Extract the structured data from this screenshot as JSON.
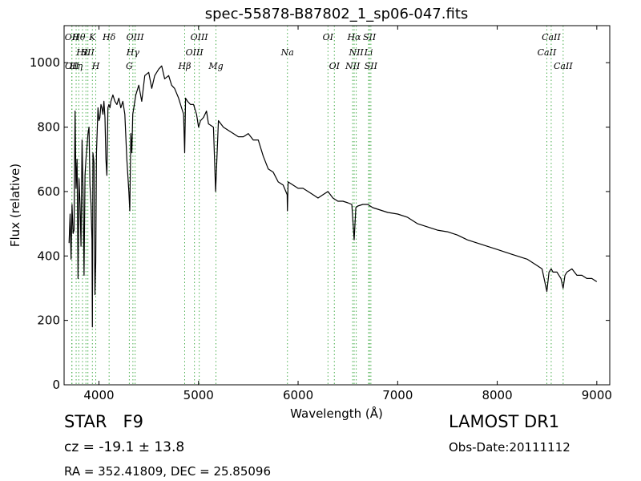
{
  "chart_data": {
    "type": "line",
    "title": "spec-55878-B87802_1_sp06-047.fits",
    "xlabel": "Wavelength (Å)",
    "ylabel": "Flux (relative)",
    "xlim": [
      3650,
      9130
    ],
    "ylim": [
      0,
      1115
    ],
    "xticks": [
      4000,
      5000,
      6000,
      7000,
      8000,
      9000
    ],
    "yticks": [
      0,
      200,
      400,
      600,
      800,
      1000
    ],
    "grid": false,
    "line_color": "#000000",
    "line_marker_color": "#4caf50",
    "series": [
      {
        "x": [
          3700,
          3710,
          3720,
          3730,
          3740,
          3750,
          3760,
          3770,
          3780,
          3790,
          3800,
          3810,
          3820,
          3830,
          3840,
          3850,
          3860,
          3870,
          3880,
          3890,
          3900,
          3910,
          3920,
          3930,
          3934,
          3940,
          3950,
          3960,
          3968,
          3975,
          3990,
          4000,
          4010,
          4020,
          4030,
          4040,
          4050,
          4060,
          4070,
          4080,
          4090,
          4100,
          4110,
          4120,
          4140,
          4160,
          4180,
          4200,
          4220,
          4240,
          4260,
          4280,
          4300,
          4310,
          4320,
          4330,
          4340,
          4350,
          4370,
          4400,
          4430,
          4460,
          4500,
          4530,
          4560,
          4600,
          4630,
          4660,
          4700,
          4730,
          4760,
          4800,
          4830,
          4850,
          4861,
          4870,
          4890,
          4920,
          4950,
          4980,
          5000,
          5020,
          5050,
          5080,
          5100,
          5150,
          5172,
          5183,
          5200,
          5250,
          5300,
          5350,
          5400,
          5450,
          5500,
          5550,
          5600,
          5650,
          5700,
          5750,
          5800,
          5850,
          5890,
          5893,
          5900,
          5950,
          6000,
          6050,
          6100,
          6150,
          6200,
          6250,
          6300,
          6350,
          6400,
          6450,
          6500,
          6540,
          6563,
          6580,
          6600,
          6650,
          6700,
          6750,
          6800,
          6850,
          6900,
          7000,
          7100,
          7200,
          7300,
          7400,
          7500,
          7600,
          7700,
          7800,
          7900,
          8000,
          8100,
          8200,
          8300,
          8400,
          8450,
          8498,
          8520,
          8542,
          8560,
          8600,
          8640,
          8662,
          8680,
          8700,
          8750,
          8800,
          8850,
          8900,
          8950,
          9000
        ],
        "y": [
          440,
          530,
          390,
          560,
          470,
          480,
          850,
          610,
          700,
          330,
          640,
          560,
          430,
          760,
          610,
          340,
          650,
          700,
          740,
          780,
          800,
          620,
          560,
          450,
          180,
          720,
          690,
          280,
          380,
          720,
          860,
          820,
          830,
          870,
          860,
          840,
          880,
          830,
          700,
          650,
          860,
          870,
          860,
          880,
          900,
          880,
          870,
          890,
          860,
          880,
          840,
          700,
          600,
          540,
          780,
          720,
          840,
          860,
          900,
          930,
          880,
          960,
          970,
          920,
          960,
          980,
          990,
          950,
          960,
          930,
          920,
          890,
          860,
          840,
          720,
          890,
          880,
          870,
          870,
          840,
          800,
          820,
          830,
          850,
          810,
          800,
          600,
          690,
          820,
          800,
          790,
          780,
          770,
          770,
          780,
          760,
          760,
          710,
          670,
          660,
          630,
          620,
          590,
          540,
          630,
          620,
          610,
          610,
          600,
          590,
          580,
          590,
          600,
          580,
          570,
          570,
          565,
          560,
          450,
          550,
          555,
          560,
          560,
          550,
          545,
          540,
          535,
          530,
          520,
          500,
          490,
          480,
          475,
          465,
          450,
          440,
          430,
          420,
          410,
          400,
          390,
          370,
          360,
          290,
          350,
          360,
          350,
          350,
          330,
          300,
          340,
          350,
          360,
          340,
          340,
          330,
          330,
          320
        ]
      }
    ],
    "lines": [
      {
        "x": 3727,
        "row": 1,
        "label": "OII"
      },
      {
        "x": 3729,
        "row": 3,
        "label": "OII"
      },
      {
        "x": 3771,
        "row": 3,
        "label": "Hη"
      },
      {
        "x": 3798,
        "row": 1,
        "label": "Hθ"
      },
      {
        "x": 3835,
        "row": 2,
        "label": "Hε"
      },
      {
        "x": 3869,
        "row": 2,
        "label": "I"
      },
      {
        "x": 3889,
        "row": 2,
        "label": "SII"
      },
      {
        "x": 3934,
        "row": 1,
        "label": "K"
      },
      {
        "x": 3968,
        "row": 3,
        "label": "H"
      },
      {
        "x": 4102,
        "row": 1,
        "label": "Hδ"
      },
      {
        "x": 4305,
        "row": 3,
        "label": "G"
      },
      {
        "x": 4341,
        "row": 2,
        "label": "Hγ"
      },
      {
        "x": 4363,
        "row": 1,
        "label": "OIII"
      },
      {
        "x": 4861,
        "row": 3,
        "label": "Hβ"
      },
      {
        "x": 4959,
        "row": 2,
        "label": "OIII"
      },
      {
        "x": 5007,
        "row": 1,
        "label": "OIII"
      },
      {
        "x": 5175,
        "row": 3,
        "label": "Mg"
      },
      {
        "x": 5893,
        "row": 2,
        "label": "Na"
      },
      {
        "x": 6300,
        "row": 1,
        "label": "OI"
      },
      {
        "x": 6364,
        "row": 3,
        "label": "OI"
      },
      {
        "x": 6548,
        "row": 3,
        "label": "NII"
      },
      {
        "x": 6563,
        "row": 1,
        "label": "Hα"
      },
      {
        "x": 6584,
        "row": 2,
        "label": "NII"
      },
      {
        "x": 6708,
        "row": 2,
        "label": "Li"
      },
      {
        "x": 6717,
        "row": 1,
        "label": "SII"
      },
      {
        "x": 6731,
        "row": 3,
        "label": "SII"
      },
      {
        "x": 8498,
        "row": 2,
        "label": "CaII"
      },
      {
        "x": 8542,
        "row": 1,
        "label": "CaII"
      },
      {
        "x": 8662,
        "row": 3,
        "label": "CaII"
      }
    ]
  },
  "info": {
    "class": "STAR   F9",
    "cz": "cz = -19.1 ± 13.8",
    "radec": "RA = 352.41809, DEC = 25.85096",
    "survey": "LAMOST DR1",
    "obsdate": "Obs-Date:20111112"
  }
}
